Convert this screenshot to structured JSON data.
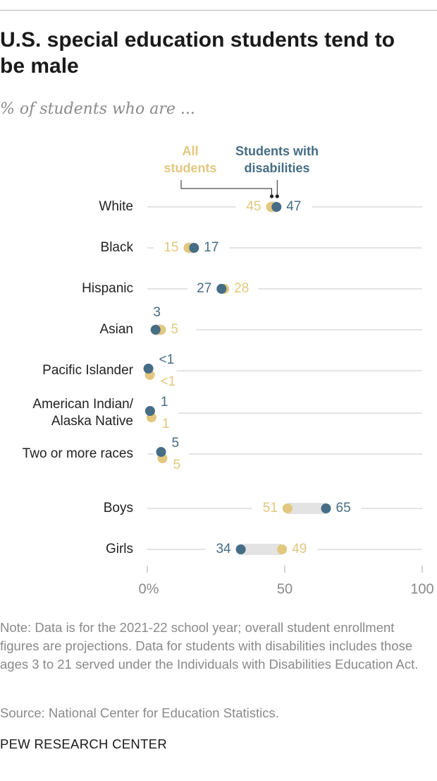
{
  "title": "U.S. special education students tend to be male",
  "subtitle": "% of students who are ...",
  "note": "Note: Data is for the 2021-22 school year; overall student enrollment figures are projections. Data for students with disabilities includes those ages 3 to 21 served under the Individuals with Disabilities Education Act.",
  "source": "Source: National Center for Education Statistics.",
  "brand": "PEW RESEARCH CENTER",
  "colors": {
    "all_students": "#e2c77e",
    "disabilities": "#456d86",
    "rule": "#c8c8c8",
    "range": "#e3e3e3",
    "label": "#222222",
    "axis": "#8a8a8a"
  },
  "chart_data": {
    "type": "dot",
    "xlim": [
      0,
      100
    ],
    "xticks": [
      0,
      50,
      100
    ],
    "xtick_labels": [
      "0%",
      "50",
      "100"
    ],
    "series": [
      {
        "name": "All students",
        "legend_lines": [
          "All",
          "students"
        ]
      },
      {
        "name": "Students with disabilities",
        "legend_lines": [
          "Students with",
          "disabilities"
        ]
      }
    ],
    "categories": [
      {
        "label_lines": [
          "White"
        ],
        "all": 45,
        "dis": 47,
        "all_label": "45",
        "dis_label": "47"
      },
      {
        "label_lines": [
          "Black"
        ],
        "all": 15,
        "dis": 17,
        "all_label": "15",
        "dis_label": "17"
      },
      {
        "label_lines": [
          "Hispanic"
        ],
        "all": 28,
        "dis": 27,
        "all_label": "28",
        "dis_label": "27"
      },
      {
        "label_lines": [
          "Asian"
        ],
        "all": 5,
        "dis": 3,
        "all_label": "5",
        "dis_label": "3"
      },
      {
        "label_lines": [
          "Pacific Islander"
        ],
        "all": 0.4,
        "dis": 0.4,
        "all_label": "<1",
        "dis_label": "<1"
      },
      {
        "label_lines": [
          "American Indian/",
          "Alaska Native"
        ],
        "all": 1,
        "dis": 1,
        "all_label": "1",
        "dis_label": "1"
      },
      {
        "label_lines": [
          "Two or more races"
        ],
        "all": 5,
        "dis": 5,
        "all_label": "5",
        "dis_label": "5"
      },
      {
        "label_lines": [
          "Boys"
        ],
        "all": 51,
        "dis": 65,
        "all_label": "51",
        "dis_label": "65"
      },
      {
        "label_lines": [
          "Girls"
        ],
        "all": 49,
        "dis": 34,
        "all_label": "49",
        "dis_label": "34"
      }
    ]
  }
}
